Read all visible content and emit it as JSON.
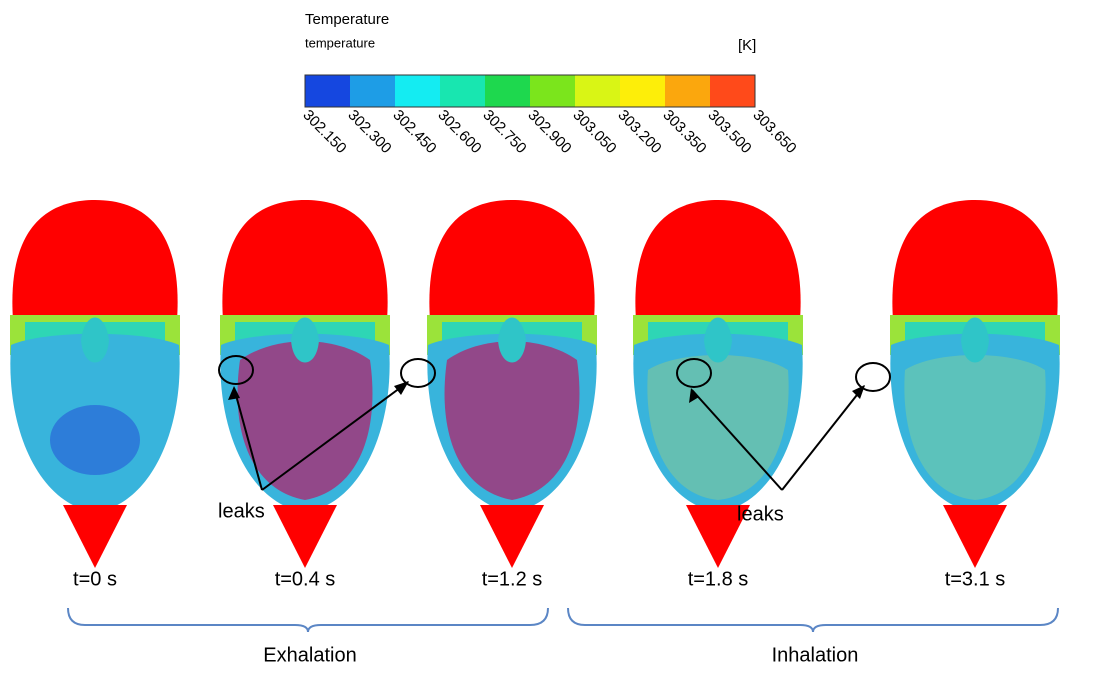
{
  "legend": {
    "title": "Temperature",
    "subtitle": "temperature",
    "unit": "[K]",
    "colors": [
      "#1547e0",
      "#1e9de6",
      "#14ecf2",
      "#18e6b0",
      "#1ed84e",
      "#7be51c",
      "#d9f515",
      "#fdee09",
      "#fba70d",
      "#ff4a1a"
    ],
    "ticks": [
      "302.150",
      "302.300",
      "302.450",
      "302.600",
      "302.750",
      "302.900",
      "303.050",
      "303.200",
      "303.350",
      "303.500",
      "303.650"
    ]
  },
  "panels": [
    {
      "label": "t=0 s"
    },
    {
      "label": "t=0.4 s"
    },
    {
      "label": "t=1.2 s"
    },
    {
      "label": "t=1.8 s"
    },
    {
      "label": "t=3.1 s"
    }
  ],
  "annotations": {
    "leaks_left": "leaks",
    "leaks_right": "leaks"
  },
  "phases": {
    "exhalation": "Exhalation",
    "inhalation": "Inhalation"
  }
}
